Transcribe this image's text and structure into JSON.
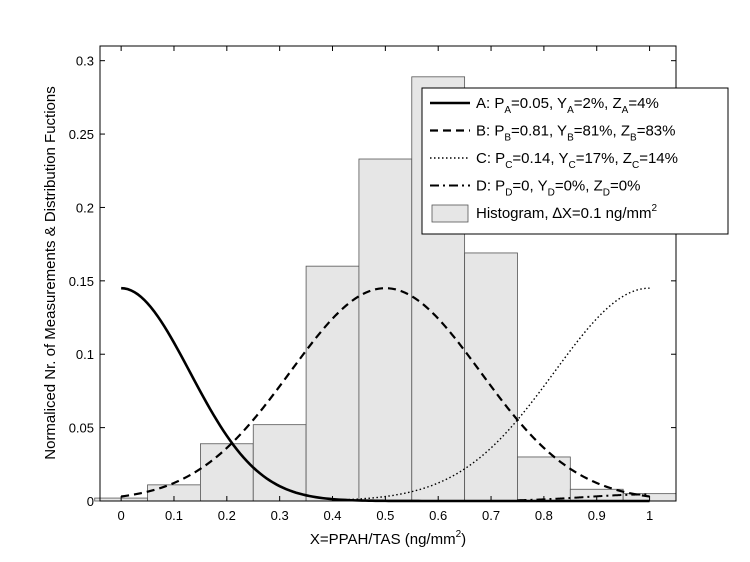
{
  "chart_data": {
    "type": "bar",
    "xlabel": "X=PPAH/TAS (ng/mm",
    "xlabel_sup": "2",
    "xlabel_tail": ")",
    "ylabel": "Normaliced Nr. of Measurements & Distribution Fuctions",
    "xlim": [
      -0.04,
      1.05
    ],
    "ylim": [
      0,
      0.31
    ],
    "grid": false,
    "legend_position": "top-right",
    "x_ticks": [
      "0",
      "0.1",
      "0.2",
      "0.3",
      "0.4",
      "0.5",
      "0.6",
      "0.7",
      "0.8",
      "0.9",
      "1"
    ],
    "y_ticks": [
      "0",
      "0.05",
      "0.1",
      "0.15",
      "0.2",
      "0.25",
      "0.3"
    ],
    "histogram": {
      "name": "Histogram",
      "bin_width": 0.1,
      "color": "#e6e6e6",
      "bins": [
        {
          "x": 0.0,
          "value": 0.002
        },
        {
          "x": 0.1,
          "value": 0.011
        },
        {
          "x": 0.2,
          "value": 0.039
        },
        {
          "x": 0.3,
          "value": 0.052
        },
        {
          "x": 0.4,
          "value": 0.16
        },
        {
          "x": 0.5,
          "value": 0.233
        },
        {
          "x": 0.6,
          "value": 0.289
        },
        {
          "x": 0.7,
          "value": 0.169
        },
        {
          "x": 0.8,
          "value": 0.03
        },
        {
          "x": 0.9,
          "value": 0.008
        },
        {
          "x": 1.0,
          "value": 0.005
        }
      ]
    },
    "series": [
      {
        "name": "A",
        "style": "solid",
        "amplitude": 0.145,
        "mean": 0.0,
        "sd": 0.13,
        "x_range": [
          0,
          1
        ]
      },
      {
        "name": "B",
        "style": "dashed",
        "amplitude": 0.145,
        "mean": 0.5,
        "sd": 0.18,
        "x_range": [
          0,
          1
        ]
      },
      {
        "name": "C",
        "style": "dotted",
        "amplitude": 0.145,
        "mean": 1.0,
        "sd": 0.18,
        "x_range": [
          0.4,
          1
        ]
      },
      {
        "name": "D",
        "style": "dashdot",
        "amplitude": 0.0045,
        "mean": 1.0,
        "sd": 0.12,
        "x_range": [
          0.75,
          1
        ]
      }
    ],
    "legend": [
      {
        "style": "solid",
        "parts": [
          [
            "t",
            "A: P"
          ],
          [
            "s",
            "A"
          ],
          [
            "t",
            "=0.05, Y"
          ],
          [
            "s",
            "A"
          ],
          [
            "t",
            "=2%, Z"
          ],
          [
            "s",
            "A"
          ],
          [
            "t",
            "=4%"
          ]
        ]
      },
      {
        "style": "dashed",
        "parts": [
          [
            "t",
            "B: P"
          ],
          [
            "s",
            "B"
          ],
          [
            "t",
            "=0.81, Y"
          ],
          [
            "s",
            "B"
          ],
          [
            "t",
            "=81%, Z"
          ],
          [
            "s",
            "B"
          ],
          [
            "t",
            "=83%"
          ]
        ]
      },
      {
        "style": "dotted",
        "parts": [
          [
            "t",
            "C: P"
          ],
          [
            "s",
            "C"
          ],
          [
            "t",
            "=0.14, Y"
          ],
          [
            "s",
            "C"
          ],
          [
            "t",
            "=17%, Z"
          ],
          [
            "s",
            "C"
          ],
          [
            "t",
            "=14%"
          ]
        ]
      },
      {
        "style": "dashdot",
        "parts": [
          [
            "t",
            "D: P"
          ],
          [
            "s",
            "D"
          ],
          [
            "t",
            "=0, Y"
          ],
          [
            "s",
            "D"
          ],
          [
            "t",
            "=0%, Z"
          ],
          [
            "s",
            "D"
          ],
          [
            "t",
            "=0%"
          ]
        ]
      },
      {
        "style": "patch",
        "parts": [
          [
            "t",
            "Histogram, ∆X=0.1 ng/mm"
          ],
          [
            "p",
            "2"
          ]
        ]
      }
    ]
  }
}
